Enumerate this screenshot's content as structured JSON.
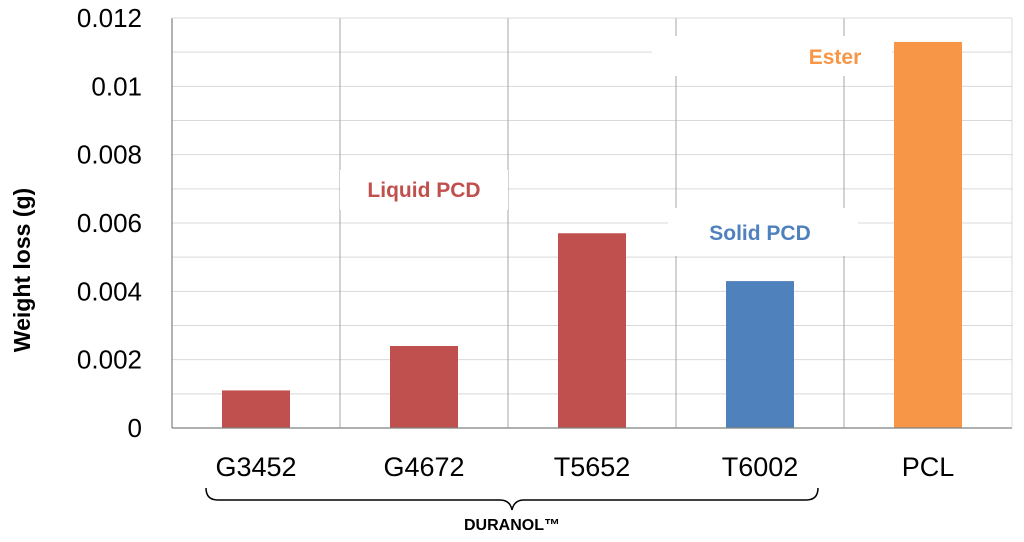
{
  "chart_data": {
    "type": "bar",
    "title": "",
    "ylabel": "Weight loss (g)",
    "xlabel": "",
    "ylim": [
      0,
      0.012
    ],
    "yticks": [
      "0",
      "0.002",
      "0.004",
      "0.006",
      "0.008",
      "0.01",
      "0.012"
    ],
    "ytick_values": [
      0,
      0.002,
      0.004,
      0.006,
      0.008,
      0.01,
      0.012
    ],
    "categories": [
      "G3452",
      "G4672",
      "T5652",
      "T6002",
      "PCL"
    ],
    "values": [
      0.0011,
      0.0024,
      0.0057,
      0.0043,
      0.0113
    ],
    "colors": [
      "#c0504d",
      "#c0504d",
      "#c0504d",
      "#4f81bd",
      "#f79646"
    ],
    "grid": true,
    "annotations": [
      {
        "text": "Liquid PCD",
        "color": "#c0504d"
      },
      {
        "text": "Solid PCD",
        "color": "#4f81bd"
      },
      {
        "text": "Ester",
        "color": "#f79646"
      }
    ],
    "group_label": "DURANOL™"
  }
}
